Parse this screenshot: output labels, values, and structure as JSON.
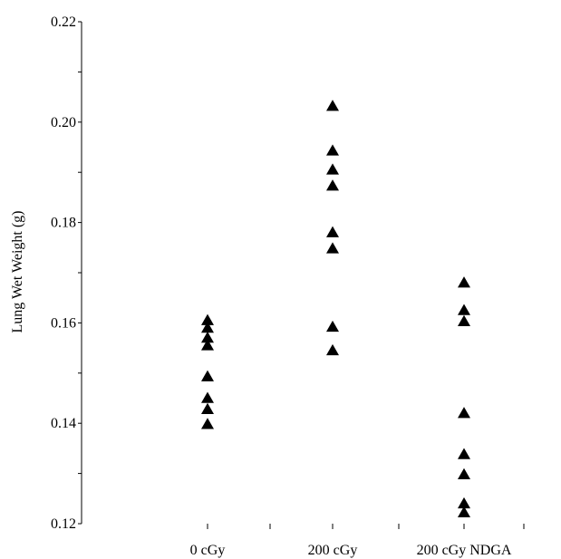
{
  "chart_data": {
    "type": "scatter",
    "title": "",
    "xlabel": "",
    "ylabel": "Lung Wet Weight (g)",
    "ylim": [
      0.12,
      0.22
    ],
    "y_ticks": [
      "0.12",
      "0.14",
      "0.16",
      "0.18",
      "0.20",
      "0.22"
    ],
    "categories": [
      "0 cGy",
      "200 cGy",
      "200 cGy NDGA"
    ],
    "marker": "filled-triangle",
    "marker_color": "#000000",
    "grid": false,
    "series": [
      {
        "category": "0 cGy",
        "values": [
          0.1605,
          0.159,
          0.157,
          0.1555,
          0.1493,
          0.145,
          0.1428,
          0.1398
        ]
      },
      {
        "category": "200 cGy",
        "values": [
          0.2032,
          0.1943,
          0.1905,
          0.1873,
          0.178,
          0.1748,
          0.1592,
          0.1545
        ]
      },
      {
        "category": "200 cGy NDGA",
        "values": [
          0.168,
          0.1625,
          0.1603,
          0.142,
          0.1338,
          0.1298,
          0.124,
          0.1222
        ]
      }
    ]
  }
}
